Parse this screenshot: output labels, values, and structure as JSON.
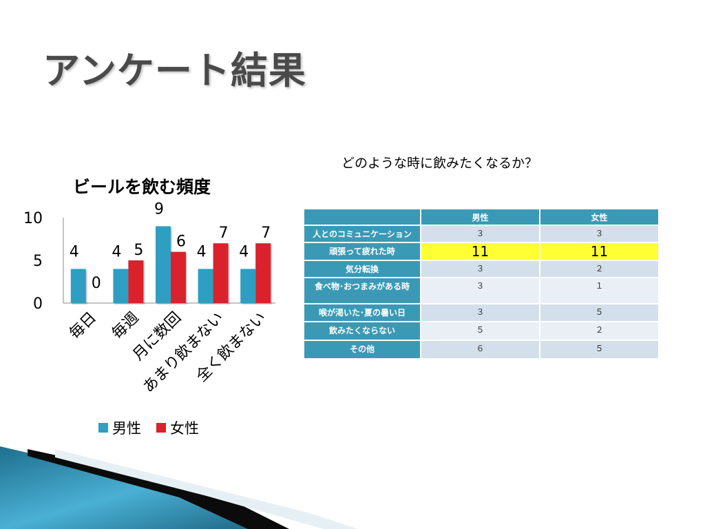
{
  "slide": {
    "title": "アンケート結果"
  },
  "chart_data": {
    "type": "bar",
    "title": "ビールを飲む頻度",
    "categories": [
      "毎日",
      "毎週",
      "月に数回",
      "あまり飲まない",
      "全く飲まない"
    ],
    "series": [
      {
        "name": "男性",
        "values": [
          4,
          4,
          9,
          4,
          4
        ],
        "color": "#2e9fc2"
      },
      {
        "name": "女性",
        "values": [
          0,
          5,
          6,
          7,
          7
        ],
        "color": "#d9222b"
      }
    ],
    "yticks": [
      0,
      5,
      10
    ],
    "ylim": [
      0,
      10
    ],
    "legend": "bottom",
    "grid": false
  },
  "survey": {
    "question": "どのような時に飲みたくなるか？",
    "columns": [
      "",
      "男性",
      "女性"
    ],
    "rows": [
      {
        "label": "人とのコミュニケーション",
        "male": "３",
        "female": "３",
        "highlight": false
      },
      {
        "label": "頑張って疲れた時",
        "male": "11",
        "female": "11",
        "highlight": true
      },
      {
        "label": "気分転換",
        "male": "３",
        "female": "２",
        "highlight": false
      },
      {
        "label": "食べ物･おつまみがある時",
        "male": "３",
        "female": "１",
        "highlight": false
      },
      {
        "label": "喉が渇いた･夏の暑い日",
        "male": "３",
        "female": "５",
        "highlight": false
      },
      {
        "label": "飲みたくならない",
        "male": "５",
        "female": "２",
        "highlight": false
      },
      {
        "label": "その他",
        "male": "６",
        "female": "５",
        "highlight": false
      }
    ],
    "header_color": "#3a9ab6",
    "highlight_color": "#ffff33"
  }
}
